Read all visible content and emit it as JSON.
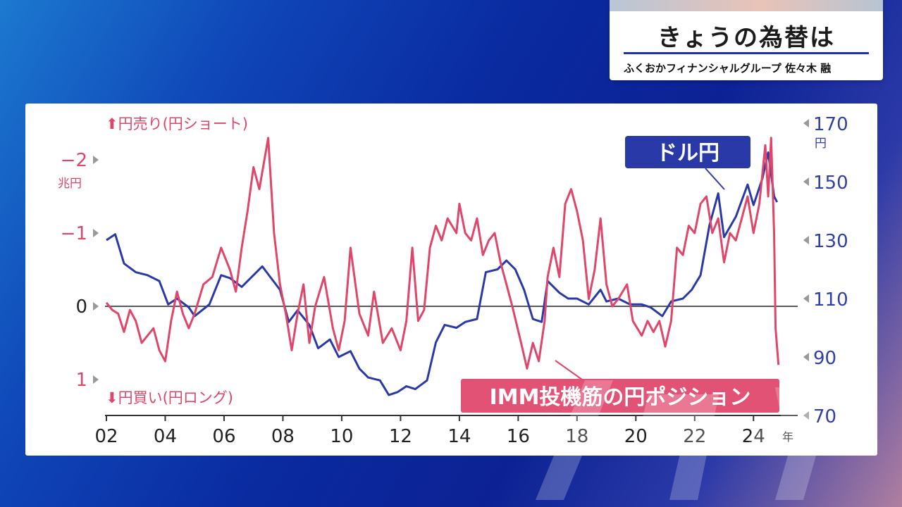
{
  "header": {
    "title": "きょうの為替は",
    "subtitle": "ふくおかフィナンシャルグループ 佐々木 融"
  },
  "chart_data": {
    "type": "line",
    "x_tick_labels": [
      "02",
      "04",
      "06",
      "08",
      "10",
      "12",
      "14",
      "16",
      "18",
      "20",
      "22",
      "24"
    ],
    "x_unit": "年",
    "xlim": [
      2002,
      2025
    ],
    "left_axis": {
      "title_top": "⬆円売り(円ショート)",
      "title_bottom": "⬇円買い(円ロング)",
      "unit": "兆円",
      "ticks": [
        "−2",
        "−1",
        "0",
        "1"
      ],
      "ylim": [
        -2.5,
        1.5
      ],
      "color": "#e0466a"
    },
    "right_axis": {
      "unit": "円",
      "ticks": [
        "170",
        "150",
        "130",
        "110",
        "90",
        "70"
      ],
      "ylim": [
        70,
        175
      ],
      "color": "#3140a8"
    },
    "series": [
      {
        "name": "ドル円",
        "axis": "right",
        "color": "#2a39a8",
        "points": [
          [
            2002.0,
            130
          ],
          [
            2002.3,
            132
          ],
          [
            2002.6,
            122
          ],
          [
            2003.0,
            119
          ],
          [
            2003.4,
            118
          ],
          [
            2003.8,
            116
          ],
          [
            2004.1,
            108
          ],
          [
            2004.4,
            110
          ],
          [
            2004.8,
            107
          ],
          [
            2005.0,
            104
          ],
          [
            2005.5,
            108
          ],
          [
            2005.9,
            118
          ],
          [
            2006.2,
            117
          ],
          [
            2006.6,
            114
          ],
          [
            2007.0,
            118
          ],
          [
            2007.3,
            121
          ],
          [
            2007.6,
            117
          ],
          [
            2007.9,
            113
          ],
          [
            2008.2,
            102
          ],
          [
            2008.5,
            106
          ],
          [
            2008.9,
            101
          ],
          [
            2009.2,
            93
          ],
          [
            2009.6,
            96
          ],
          [
            2009.9,
            90
          ],
          [
            2010.3,
            92
          ],
          [
            2010.6,
            86
          ],
          [
            2010.9,
            83
          ],
          [
            2011.3,
            82
          ],
          [
            2011.6,
            77
          ],
          [
            2011.9,
            78
          ],
          [
            2012.2,
            80
          ],
          [
            2012.5,
            79
          ],
          [
            2012.9,
            82
          ],
          [
            2013.2,
            95
          ],
          [
            2013.5,
            101
          ],
          [
            2013.9,
            100
          ],
          [
            2014.2,
            102
          ],
          [
            2014.6,
            103
          ],
          [
            2014.9,
            119
          ],
          [
            2015.3,
            120
          ],
          [
            2015.6,
            123
          ],
          [
            2015.9,
            120
          ],
          [
            2016.2,
            113
          ],
          [
            2016.5,
            103
          ],
          [
            2016.8,
            102
          ],
          [
            2017.0,
            116
          ],
          [
            2017.4,
            112
          ],
          [
            2017.7,
            110
          ],
          [
            2018.0,
            110
          ],
          [
            2018.4,
            108
          ],
          [
            2018.8,
            113
          ],
          [
            2019.0,
            109
          ],
          [
            2019.4,
            110
          ],
          [
            2019.8,
            108
          ],
          [
            2020.2,
            108
          ],
          [
            2020.5,
            107
          ],
          [
            2020.9,
            104
          ],
          [
            2021.2,
            109
          ],
          [
            2021.6,
            110
          ],
          [
            2021.9,
            113
          ],
          [
            2022.2,
            118
          ],
          [
            2022.5,
            135
          ],
          [
            2022.8,
            146
          ],
          [
            2023.0,
            131
          ],
          [
            2023.4,
            138
          ],
          [
            2023.8,
            149
          ],
          [
            2024.0,
            142
          ],
          [
            2024.3,
            151
          ],
          [
            2024.5,
            160
          ],
          [
            2024.7,
            145
          ],
          [
            2024.8,
            143
          ]
        ]
      },
      {
        "name": "IMM投機筋の円ポジション",
        "axis": "left",
        "color": "#e0466a",
        "points": [
          [
            2002.0,
            -0.05
          ],
          [
            2002.2,
            0.05
          ],
          [
            2002.4,
            0.1
          ],
          [
            2002.6,
            0.35
          ],
          [
            2002.8,
            0.05
          ],
          [
            2003.0,
            0.2
          ],
          [
            2003.2,
            0.5
          ],
          [
            2003.4,
            0.4
          ],
          [
            2003.6,
            0.3
          ],
          [
            2003.8,
            0.6
          ],
          [
            2004.0,
            0.75
          ],
          [
            2004.2,
            0.2
          ],
          [
            2004.4,
            -0.2
          ],
          [
            2004.6,
            0.1
          ],
          [
            2004.8,
            0.3
          ],
          [
            2005.0,
            0.1
          ],
          [
            2005.3,
            -0.3
          ],
          [
            2005.6,
            -0.4
          ],
          [
            2005.9,
            -0.8
          ],
          [
            2006.2,
            -0.5
          ],
          [
            2006.4,
            -0.2
          ],
          [
            2006.6,
            -0.8
          ],
          [
            2006.8,
            -1.3
          ],
          [
            2007.0,
            -1.9
          ],
          [
            2007.2,
            -1.6
          ],
          [
            2007.5,
            -2.3
          ],
          [
            2007.7,
            -1.0
          ],
          [
            2007.9,
            -0.3
          ],
          [
            2008.1,
            0.1
          ],
          [
            2008.3,
            0.6
          ],
          [
            2008.5,
            0.1
          ],
          [
            2008.7,
            -0.3
          ],
          [
            2008.9,
            0.5
          ],
          [
            2009.1,
            0.0
          ],
          [
            2009.4,
            -0.4
          ],
          [
            2009.7,
            0.3
          ],
          [
            2009.9,
            0.6
          ],
          [
            2010.1,
            0.2
          ],
          [
            2010.3,
            -0.8
          ],
          [
            2010.6,
            0.1
          ],
          [
            2010.9,
            0.4
          ],
          [
            2011.1,
            -0.2
          ],
          [
            2011.4,
            0.5
          ],
          [
            2011.7,
            0.3
          ],
          [
            2012.0,
            0.6
          ],
          [
            2012.2,
            0.2
          ],
          [
            2012.4,
            -0.8
          ],
          [
            2012.6,
            0.2
          ],
          [
            2012.8,
            0.05
          ],
          [
            2013.0,
            -0.8
          ],
          [
            2013.2,
            -1.1
          ],
          [
            2013.4,
            -0.9
          ],
          [
            2013.6,
            -1.2
          ],
          [
            2013.9,
            -1.0
          ],
          [
            2014.0,
            -1.4
          ],
          [
            2014.2,
            -1.0
          ],
          [
            2014.4,
            -0.9
          ],
          [
            2014.6,
            -1.2
          ],
          [
            2014.8,
            -0.7
          ],
          [
            2015.0,
            -0.9
          ],
          [
            2015.2,
            -1.0
          ],
          [
            2015.4,
            -0.6
          ],
          [
            2015.6,
            -0.3
          ],
          [
            2015.8,
            0.0
          ],
          [
            2016.1,
            0.5
          ],
          [
            2016.3,
            0.85
          ],
          [
            2016.5,
            0.5
          ],
          [
            2016.7,
            0.75
          ],
          [
            2016.9,
            0.2
          ],
          [
            2017.0,
            -0.4
          ],
          [
            2017.2,
            -0.8
          ],
          [
            2017.4,
            -0.4
          ],
          [
            2017.6,
            -1.4
          ],
          [
            2017.8,
            -1.6
          ],
          [
            2018.0,
            -1.3
          ],
          [
            2018.2,
            -0.9
          ],
          [
            2018.4,
            -0.1
          ],
          [
            2018.6,
            -0.5
          ],
          [
            2018.8,
            -1.2
          ],
          [
            2019.0,
            -0.3
          ],
          [
            2019.2,
            0.0
          ],
          [
            2019.4,
            -0.1
          ],
          [
            2019.7,
            -0.3
          ],
          [
            2019.9,
            0.2
          ],
          [
            2020.2,
            0.4
          ],
          [
            2020.4,
            0.2
          ],
          [
            2020.6,
            0.35
          ],
          [
            2020.8,
            0.2
          ],
          [
            2021.0,
            0.55
          ],
          [
            2021.2,
            0.2
          ],
          [
            2021.4,
            -0.8
          ],
          [
            2021.6,
            -0.7
          ],
          [
            2021.8,
            -1.1
          ],
          [
            2022.0,
            -1.0
          ],
          [
            2022.2,
            -1.4
          ],
          [
            2022.4,
            -1.5
          ],
          [
            2022.6,
            -1.0
          ],
          [
            2022.8,
            -1.2
          ],
          [
            2023.0,
            -0.6
          ],
          [
            2023.2,
            -1.0
          ],
          [
            2023.4,
            -0.9
          ],
          [
            2023.6,
            -1.2
          ],
          [
            2023.8,
            -1.5
          ],
          [
            2024.0,
            -1.0
          ],
          [
            2024.2,
            -1.4
          ],
          [
            2024.4,
            -2.2
          ],
          [
            2024.5,
            -1.5
          ],
          [
            2024.6,
            -2.3
          ],
          [
            2024.7,
            -1.0
          ],
          [
            2024.75,
            0.3
          ],
          [
            2024.85,
            0.8
          ]
        ]
      }
    ],
    "annotations": {
      "usdjpy_label": "ドル円",
      "imm_label": "IMM投機筋の円ポジション"
    },
    "zero_line": true
  },
  "colors": {
    "red": "#e0466a",
    "blue": "#2a39a8",
    "label_blue_bg": "#2a39a8",
    "label_red_bg": "#e25275"
  }
}
